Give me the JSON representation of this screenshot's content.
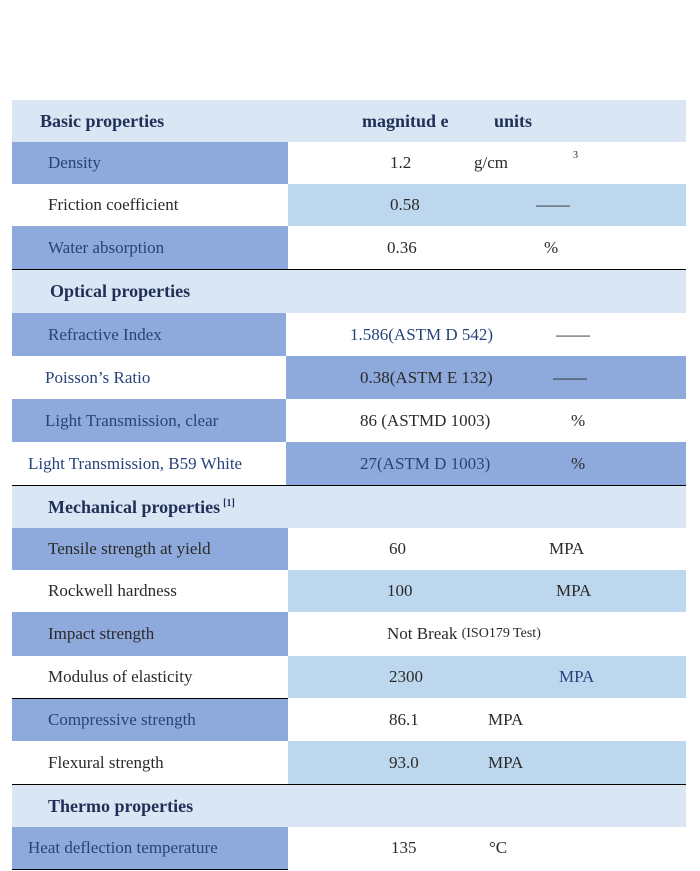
{
  "headers": {
    "basic": "Basic properties",
    "magnitude": "magnitud e",
    "units": "units",
    "optical": "Optical properties",
    "mechanical": "Mechanical properties",
    "mechanical_ref": "[1]",
    "thermo": "Thermo properties"
  },
  "basic": [
    {
      "label": "Density",
      "value": "1.2",
      "unit": "g/cm",
      "unit_sup": "3"
    },
    {
      "label": "Friction coefficient",
      "value": "0.58",
      "unit": "——"
    },
    {
      "label": "Water absorption",
      "value": "0.36",
      "unit": "%"
    }
  ],
  "optical": [
    {
      "label": "Refractive Index",
      "value": "1.586(ASTM D 542)",
      "unit": "——"
    },
    {
      "label": "Poisson’s Ratio",
      "value": "0.38(ASTM E 132)",
      "unit": "——"
    },
    {
      "label": "Light Transmission, clear",
      "value": "86 (ASTMD 1003)",
      "unit": "%"
    },
    {
      "label": "Light Transmission, B59 White",
      "value": "27(ASTM D 1003)",
      "unit": "%"
    }
  ],
  "mechanical": [
    {
      "label": "Tensile strength at yield",
      "value": "60",
      "unit": "MPA"
    },
    {
      "label": "Rockwell hardness",
      "value": "100",
      "unit": "MPA"
    },
    {
      "label": "Impact strength",
      "value": "Not Break",
      "value_note": "(ISO179 Test)"
    },
    {
      "label": "Modulus of elasticity",
      "value": "2300",
      "unit": "MPA"
    },
    {
      "label": "Compressive strength",
      "value": "86.1",
      "unit": "MPA"
    },
    {
      "label": "Flexural strength",
      "value": "93.0",
      "unit": "MPA"
    }
  ],
  "thermo": [
    {
      "label": "Heat deflection temperature",
      "value": "135",
      "unit": "°C"
    }
  ],
  "colors": {
    "header_band": "#dae6f3",
    "dark_band": "#8ea9db",
    "light_band": "#bdd7ee",
    "header_text": "#1f2f57"
  }
}
